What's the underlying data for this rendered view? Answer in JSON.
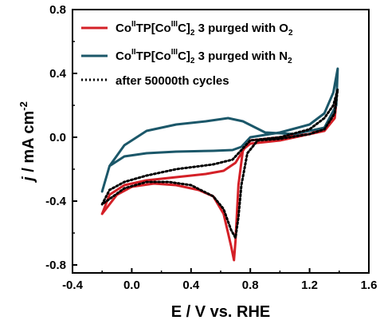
{
  "chart_data": {
    "type": "line",
    "xlabel": "E / V vs. RHE",
    "ylabel": "j / mA cm-2",
    "xlim": [
      -0.4,
      1.6
    ],
    "ylim": [
      -0.85,
      0.8
    ],
    "xticks": [
      -0.4,
      0.0,
      0.4,
      0.8,
      1.2,
      1.6
    ],
    "yticks": [
      -0.8,
      -0.4,
      0.0,
      0.4,
      0.8
    ],
    "xtick_labels": [
      "-0.4",
      "0.0",
      "0.4",
      "0.8",
      "1.2",
      "1.6"
    ],
    "ytick_labels": [
      "-0.8",
      "-0.4",
      "0.0",
      "0.4",
      "0.8"
    ],
    "grid": false,
    "legend_position": "top",
    "series": [
      {
        "name": "CoIITP[CoIIIC]2 3 purged with O2",
        "color": "#d42027",
        "style": "solid",
        "points": [
          [
            -0.2,
            -0.48
          ],
          [
            -0.15,
            -0.36
          ],
          [
            -0.05,
            -0.3
          ],
          [
            0.1,
            -0.27
          ],
          [
            0.3,
            -0.25
          ],
          [
            0.5,
            -0.23
          ],
          [
            0.62,
            -0.21
          ],
          [
            0.7,
            -0.16
          ],
          [
            0.76,
            -0.07
          ],
          [
            0.8,
            -0.04
          ],
          [
            1.0,
            -0.02
          ],
          [
            1.2,
            0.02
          ],
          [
            1.3,
            0.06
          ],
          [
            1.35,
            0.12
          ],
          [
            1.38,
            0.22
          ],
          [
            1.37,
            0.12
          ],
          [
            1.3,
            0.04
          ],
          [
            1.2,
            0.02
          ],
          [
            1.0,
            0.0
          ],
          [
            0.8,
            -0.02
          ],
          [
            0.75,
            -0.08
          ],
          [
            0.72,
            -0.3
          ],
          [
            0.7,
            -0.65
          ],
          [
            0.69,
            -0.77
          ],
          [
            0.67,
            -0.68
          ],
          [
            0.62,
            -0.48
          ],
          [
            0.55,
            -0.37
          ],
          [
            0.45,
            -0.33
          ],
          [
            0.3,
            -0.3
          ],
          [
            0.15,
            -0.29
          ],
          [
            0.0,
            -0.31
          ],
          [
            -0.1,
            -0.36
          ],
          [
            -0.2,
            -0.48
          ]
        ]
      },
      {
        "name": "CoIITP[CoIIIC]2 3 purged with N2",
        "color": "#1b5769",
        "style": "solid",
        "points": [
          [
            -0.2,
            -0.34
          ],
          [
            -0.15,
            -0.18
          ],
          [
            -0.05,
            -0.12
          ],
          [
            0.1,
            -0.1
          ],
          [
            0.3,
            -0.09
          ],
          [
            0.55,
            -0.085
          ],
          [
            0.68,
            -0.08
          ],
          [
            0.74,
            -0.06
          ],
          [
            0.8,
            0.0
          ],
          [
            1.0,
            0.03
          ],
          [
            1.2,
            0.08
          ],
          [
            1.3,
            0.15
          ],
          [
            1.36,
            0.28
          ],
          [
            1.39,
            0.43
          ],
          [
            1.38,
            0.2
          ],
          [
            1.3,
            0.06
          ],
          [
            1.1,
            0.02
          ],
          [
            0.9,
            0.03
          ],
          [
            0.75,
            0.1
          ],
          [
            0.65,
            0.12
          ],
          [
            0.5,
            0.1
          ],
          [
            0.3,
            0.08
          ],
          [
            0.1,
            0.04
          ],
          [
            -0.05,
            -0.05
          ],
          [
            -0.15,
            -0.18
          ],
          [
            -0.2,
            -0.34
          ]
        ]
      },
      {
        "name": "after 50000th cycles",
        "color": "#000000",
        "style": "dotted",
        "points": [
          [
            -0.2,
            -0.42
          ],
          [
            -0.15,
            -0.33
          ],
          [
            -0.05,
            -0.28
          ],
          [
            0.1,
            -0.24
          ],
          [
            0.3,
            -0.2
          ],
          [
            0.55,
            -0.17
          ],
          [
            0.68,
            -0.14
          ],
          [
            0.74,
            -0.08
          ],
          [
            0.8,
            -0.02
          ],
          [
            1.0,
            0.0
          ],
          [
            1.2,
            0.05
          ],
          [
            1.3,
            0.12
          ],
          [
            1.36,
            0.2
          ],
          [
            1.39,
            0.3
          ],
          [
            1.37,
            0.15
          ],
          [
            1.3,
            0.05
          ],
          [
            1.2,
            0.02
          ],
          [
            1.0,
            -0.01
          ],
          [
            0.85,
            -0.02
          ],
          [
            0.78,
            -0.1
          ],
          [
            0.74,
            -0.3
          ],
          [
            0.72,
            -0.5
          ],
          [
            0.7,
            -0.63
          ],
          [
            0.67,
            -0.58
          ],
          [
            0.62,
            -0.45
          ],
          [
            0.55,
            -0.37
          ],
          [
            0.4,
            -0.3
          ],
          [
            0.25,
            -0.28
          ],
          [
            0.1,
            -0.28
          ],
          [
            -0.05,
            -0.32
          ],
          [
            -0.2,
            -0.42
          ]
        ]
      }
    ]
  },
  "legend": [
    {
      "id": "o2",
      "base": "Co",
      "sup1": "II",
      "mid": "TP[Co",
      "sup2": "III",
      "post": "C]",
      "sub": "2",
      "tail": " 3 purged with O",
      "tailsub": "2",
      "color": "#d42027",
      "style": "solid"
    },
    {
      "id": "n2",
      "base": "Co",
      "sup1": "II",
      "mid": "TP[Co",
      "sup2": "III",
      "post": "C]",
      "sub": "2",
      "tail": " 3 purged with N",
      "tailsub": "2",
      "color": "#1b5769",
      "style": "solid"
    },
    {
      "id": "cyc",
      "plain": "after 50000th cycles",
      "color": "#000000",
      "style": "dotted"
    }
  ],
  "axes_titles": {
    "x": "E / V vs. RHE",
    "y_main": "j",
    "y_rest": " / mA cm",
    "y_sup": "-2"
  }
}
